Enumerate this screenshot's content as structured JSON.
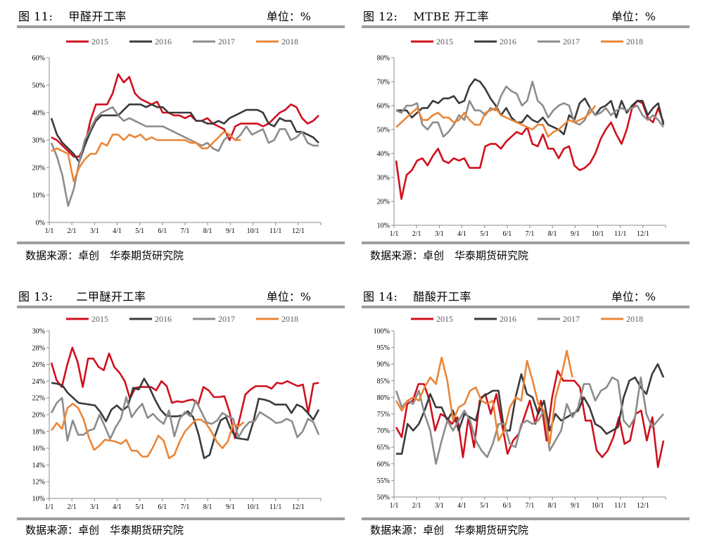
{
  "colors": {
    "2015": "#d0101e",
    "2016": "#3a3a3a",
    "2017": "#8c8c8c",
    "2018": "#ea8638"
  },
  "panels": [
    {
      "title": "图 11:　 甲醛开工率",
      "unit": "单位：%",
      "source": "数据来源：卓创　华泰期货研究院",
      "chart_data": {
        "type": "line",
        "y_ticks": [
          "0%",
          "10%",
          "20%",
          "30%",
          "40%",
          "50%",
          "60%"
        ],
        "x_ticks": [
          "1/1",
          "2/1",
          "3/1",
          "4/1",
          "5/1",
          "6/1",
          "7/1",
          "8/1",
          "9/1",
          "10/1",
          "11/1",
          "12/1"
        ],
        "ylim": [
          0,
          60
        ],
        "legend": [
          "2015",
          "2016",
          "2017",
          "2018"
        ],
        "series": [
          {
            "name": "2015",
            "values": [
              31,
              30,
              28,
              26,
              24,
              24,
              28,
              37,
              43,
              43,
              43,
              47,
              54,
              51,
              53,
              47,
              45,
              44,
              43,
              44,
              40,
              40,
              39,
              39,
              38,
              39,
              37,
              37,
              38,
              36,
              35,
              34,
              30,
              35,
              36,
              36,
              36,
              36,
              35,
              36,
              38,
              40,
              41,
              43,
              42,
              38,
              36,
              37,
              39
            ]
          },
          {
            "name": "2016",
            "values": [
              38,
              32,
              29,
              27,
              25,
              22,
              28,
              33,
              37,
              39,
              39,
              39,
              39,
              41,
              43,
              43,
              43,
              42,
              43,
              42,
              42,
              40,
              40,
              40,
              40,
              40,
              37,
              37,
              36,
              36,
              37,
              36,
              38,
              39,
              40,
              41,
              41,
              41,
              40,
              36,
              35,
              38,
              37,
              37,
              33,
              33,
              32,
              31,
              29
            ]
          },
          {
            "name": "2017",
            "values": [
              29,
              24,
              17,
              6,
              12,
              22,
              30,
              34,
              38,
              40,
              41,
              42,
              39,
              37,
              38,
              37,
              36,
              35,
              35,
              35,
              35,
              34,
              33,
              32,
              31,
              30,
              29,
              28,
              29,
              27,
              26,
              30,
              32,
              30,
              32,
              35,
              32,
              33,
              34,
              29,
              30,
              34,
              34,
              30,
              31,
              33,
              29,
              28,
              28
            ]
          },
          {
            "name": "2018",
            "values": [
              26,
              27,
              26,
              25,
              15,
              20,
              23,
              25,
              25,
              29,
              28,
              32,
              32,
              30,
              32,
              31,
              32,
              30,
              31,
              30,
              30,
              30,
              30,
              30,
              30,
              29,
              29,
              27,
              27,
              29,
              31,
              33,
              32,
              30,
              30,
              null,
              null,
              null,
              null,
              null,
              null,
              null,
              null,
              null,
              null,
              null,
              null,
              null,
              null
            ]
          }
        ]
      }
    },
    {
      "title": "图 12:　 MTBE 开工率",
      "unit": "单位：%",
      "source": "数据来源：卓创　华泰期货研究院",
      "chart_data": {
        "type": "line",
        "y_ticks": [
          "10%",
          "20%",
          "30%",
          "40%",
          "50%",
          "60%",
          "70%",
          "80%"
        ],
        "x_ticks": [
          "1/1",
          "2/1",
          "3/1",
          "4/1",
          "5/1",
          "6/1",
          "7/1",
          "8/1",
          "9/1",
          "10/1",
          "11/1",
          "12/1"
        ],
        "ylim": [
          10,
          80
        ],
        "legend": [
          "2015",
          "2016",
          "2017",
          "2018"
        ],
        "series": [
          {
            "name": "2015",
            "values": [
              37,
              21,
              31,
              33,
              37,
              38,
              35,
              39,
              42,
              37,
              36,
              38,
              37,
              38,
              34,
              34,
              34,
              43,
              44,
              44,
              42,
              45,
              47,
              49,
              48,
              51,
              44,
              43,
              48,
              42,
              42,
              38,
              42,
              43,
              35,
              33,
              34,
              36,
              40,
              46,
              50,
              53,
              48,
              44,
              50,
              59,
              62,
              61,
              55,
              53,
              59,
              53
            ]
          },
          {
            "name": "2016",
            "values": [
              58,
              58,
              58,
              55,
              57,
              59,
              59,
              62,
              61,
              63,
              63,
              64,
              61,
              62,
              68,
              71,
              70,
              67,
              63,
              60,
              56,
              59,
              55,
              53,
              53,
              56,
              54,
              53,
              55,
              52,
              51,
              50,
              48,
              56,
              54,
              61,
              63,
              59,
              56,
              59,
              60,
              62,
              55,
              62,
              57,
              60,
              62,
              62,
              56,
              59,
              61,
              52
            ]
          },
          {
            "name": "2017",
            "values": [
              58,
              57,
              60,
              60,
              61,
              52,
              50,
              53,
              53,
              47,
              49,
              52,
              56,
              54,
              62,
              58,
              58,
              56,
              59,
              58,
              64,
              68,
              66,
              65,
              60,
              62,
              70,
              62,
              60,
              55,
              58,
              60,
              61,
              60,
              53,
              52,
              54,
              59,
              56,
              57,
              59,
              56,
              58,
              59,
              58,
              59,
              60,
              56,
              54,
              56,
              54,
              51
            ]
          },
          {
            "name": "2018",
            "values": [
              51,
              53,
              55,
              57,
              59,
              54,
              54,
              56,
              57,
              55,
              55,
              53,
              54,
              57,
              54,
              52,
              52,
              57,
              58,
              59,
              56,
              55,
              54,
              53,
              52,
              51,
              50,
              52,
              52,
              47,
              49,
              50,
              52,
              54,
              53,
              54,
              55,
              57,
              60,
              null,
              null,
              null,
              null,
              null,
              null,
              null,
              null,
              null,
              null,
              null,
              null,
              null
            ]
          }
        ]
      }
    },
    {
      "title": "图 13:　　二甲醚开工率",
      "unit": "单位：%",
      "source": "数据来源：卓创　华泰期货研究院",
      "chart_data": {
        "type": "line",
        "y_ticks": [
          "10%",
          "12%",
          "14%",
          "16%",
          "18%",
          "20%",
          "22%",
          "24%",
          "26%",
          "28%",
          "30%"
        ],
        "x_ticks": [
          "1/1",
          "2/1",
          "3/1",
          "4/1",
          "5/1",
          "6/1",
          "7/1",
          "8/1",
          "9/1",
          "10/1",
          "11/1",
          "12/1"
        ],
        "ylim": [
          10,
          30
        ],
        "legend": [
          "2015",
          "2016",
          "2017",
          "2018"
        ],
        "series": [
          {
            "name": "2015",
            "values": [
              26.2,
              24.1,
              23.3,
              25.9,
              28.0,
              26.3,
              23.3,
              26.7,
              26.7,
              25.7,
              25.3,
              27.3,
              25.7,
              25.0,
              24.0,
              21.9,
              23.2,
              23.3,
              23.3,
              23.3,
              22.9,
              24.0,
              23.4,
              21.4,
              21.6,
              21.5,
              21.7,
              21.8,
              21.2,
              23.3,
              22.9,
              22.1,
              22.1,
              22.2,
              20.3,
              17.2,
              19.7,
              22.4,
              23.0,
              23.4,
              23.4,
              23.4,
              23.1,
              23.8,
              23.7,
              24.0,
              23.7,
              23.4,
              23.6,
              20.2,
              23.7,
              23.8
            ]
          },
          {
            "name": "2016",
            "values": [
              23.8,
              23.7,
              23.5,
              22.6,
              22.0,
              21.4,
              21.3,
              21.2,
              21.1,
              20.3,
              19.2,
              20.6,
              21.1,
              20.5,
              21.0,
              23.2,
              23.0,
              24.3,
              23.2,
              21.8,
              20.6,
              19.9,
              19.8,
              19.8,
              19.9,
              20.4,
              19.7,
              17.6,
              14.8,
              15.2,
              17.5,
              19.3,
              19.7,
              18.1,
              17.2,
              17.1,
              17.0,
              19.1,
              21.9,
              21.8,
              21.6,
              21.2,
              21.2,
              21.2,
              20.2,
              21.2,
              20.9,
              20.2,
              19.4,
              20.6
            ]
          },
          {
            "name": "2017",
            "values": [
              20.2,
              21.4,
              22.0,
              16.9,
              19.3,
              17.6,
              17.6,
              18.1,
              18.3,
              20.0,
              18.6,
              17.1,
              18.5,
              19.5,
              22.1,
              19.7,
              20.6,
              21.3,
              19.6,
              20.1,
              19.4,
              18.9,
              20.5,
              17.4,
              19.5,
              20.3,
              19.8,
              21.7,
              20.4,
              19.1,
              18.9,
              19.3,
              20.2,
              19.8,
              19.5,
              17.3,
              18.4,
              19.1,
              19.2,
              20.3,
              19.9,
              19.5,
              19.0,
              19.1,
              19.5,
              19.2,
              17.3,
              18.0,
              19.5,
              19.1,
              17.6
            ]
          },
          {
            "name": "2018",
            "values": [
              18.1,
              19.0,
              18.3,
              20.8,
              21.3,
              20.8,
              19.5,
              17.3,
              15.8,
              16.3,
              17.0,
              16.9,
              16.8,
              16.5,
              17.0,
              15.7,
              15.7,
              15.0,
              15.0,
              16.1,
              17.5,
              16.9,
              14.8,
              15.2,
              16.8,
              18.0,
              18.7,
              19.4,
              19.4,
              18.9,
              17.9,
              16.7,
              16.0,
              16.8,
              18.9,
              18.6,
              19.1,
              null,
              null,
              null,
              null,
              null,
              null,
              null,
              null,
              null,
              null,
              null,
              null,
              null,
              null
            ]
          }
        ]
      }
    },
    {
      "title": "图 14:　 醋酸开工率",
      "unit": "单位：%",
      "source": "数据来源：卓创　华泰期货研究院",
      "chart_data": {
        "type": "line",
        "y_ticks": [
          "50%",
          "55%",
          "60%",
          "65%",
          "70%",
          "75%",
          "80%",
          "85%",
          "90%",
          "95%",
          "100%"
        ],
        "x_ticks": [
          "1/1",
          "2/1",
          "3/1",
          "4/1",
          "5/1",
          "6/1",
          "7/1",
          "8/1",
          "9/1",
          "10/1",
          "11/1",
          "12/1"
        ],
        "ylim": [
          50,
          100
        ],
        "legend": [
          "2015",
          "2016",
          "2017",
          "2018"
        ],
        "series": [
          {
            "name": "2015",
            "values": [
              71,
              68,
              78,
              79,
              84,
              84,
              79,
              70,
              75,
              74,
              72,
              74,
              62,
              74,
              65,
              79,
              81,
              75,
              81,
              72,
              63,
              67,
              69,
              74,
              79,
              72,
              79,
              67,
              80,
              88,
              85,
              85,
              85,
              83,
              73,
              73,
              64,
              62,
              64,
              68,
              74,
              66,
              67,
              75,
              76,
              67,
              74,
              59,
              67
            ]
          },
          {
            "name": "2016",
            "values": [
              63,
              63,
              72,
              70,
              72,
              76,
              81,
              77,
              77,
              73,
              76,
              70,
              75,
              74,
              73,
              80,
              81,
              82,
              82,
              70,
              70,
              80,
              87,
              81,
              80,
              75,
              79,
              70,
              75,
              73,
              74,
              75,
              76,
              80,
              77,
              72,
              71,
              69,
              70,
              71,
              80,
              85,
              86,
              83,
              81,
              87,
              90,
              86
            ]
          },
          {
            "name": "2017",
            "values": [
              82,
              77,
              79,
              78,
              82,
              75,
              70,
              60,
              67,
              73,
              70,
              73,
              76,
              73,
              67,
              64,
              62,
              66,
              72,
              72,
              66,
              65,
              72,
              73,
              72,
              73,
              76,
              64,
              67,
              70,
              78,
              74,
              77,
              84,
              84,
              79,
              82,
              83,
              86,
              85,
              73,
              71,
              74,
              86,
              75,
              71,
              73,
              75
            ]
          },
          {
            "name": "2018",
            "values": [
              79,
              76,
              79,
              80,
              79,
              83,
              86,
              84,
              92,
              85,
              73,
              77,
              78,
              82,
              83,
              79,
              78,
              79,
              67,
              70,
              77,
              80,
              79,
              91,
              85,
              78,
              76,
              66,
              80,
              86,
              94,
              86,
              null,
              null,
              null,
              null,
              null,
              null,
              null,
              null,
              null,
              null,
              null,
              null,
              null,
              null,
              null,
              null
            ]
          }
        ]
      }
    }
  ]
}
